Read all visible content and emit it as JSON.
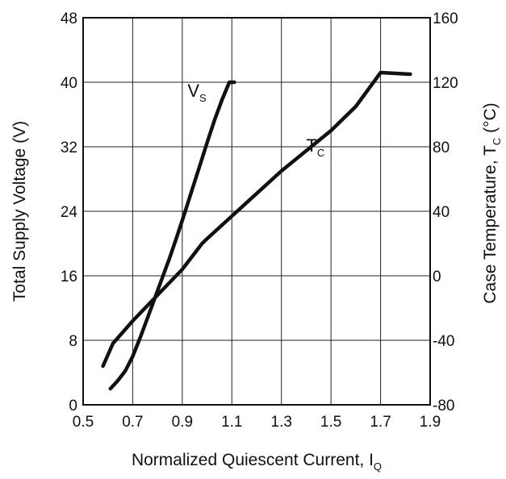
{
  "chart_data": {
    "type": "line",
    "xlabel": {
      "text": "Normalized Quiescent Current, I",
      "sub": "Q"
    },
    "ylabel_left": {
      "text": "Total Supply Voltage (V)"
    },
    "ylabel_right": {
      "text": "Case Temperature, T",
      "sub": "C",
      "suffix": " (°C)"
    },
    "xlim": [
      0.5,
      1.9
    ],
    "ylim_left": [
      0,
      48
    ],
    "ylim_right": [
      -80,
      160
    ],
    "x_ticks": [
      "0.5",
      "0.7",
      "0.9",
      "1.1",
      "1.3",
      "1.5",
      "1.7",
      "1.9"
    ],
    "y_ticks_left": [
      "0",
      "8",
      "16",
      "24",
      "32",
      "40",
      "48"
    ],
    "y_ticks_right": [
      "-80",
      "-40",
      "0",
      "40",
      "80",
      "120",
      "160"
    ],
    "grid": true,
    "series": [
      {
        "name": "V",
        "name_sub": "S",
        "axis": "left",
        "x": [
          0.61,
          0.64,
          0.67,
          0.7,
          0.73,
          0.76,
          0.79,
          0.82,
          0.85,
          0.88,
          0.91,
          0.94,
          0.97,
          1.0,
          1.03,
          1.06,
          1.09,
          1.11
        ],
        "y": [
          2,
          3,
          4.2,
          6,
          8.3,
          10.8,
          13.3,
          15.8,
          18.3,
          21,
          23.8,
          26.7,
          29.6,
          32.5,
          35.3,
          37.8,
          40,
          40
        ]
      },
      {
        "name": "T",
        "name_sub": "C",
        "axis": "right",
        "x": [
          0.58,
          0.62,
          0.7,
          0.8,
          0.9,
          0.98,
          1.0,
          1.1,
          1.3,
          1.5,
          1.6,
          1.7,
          1.82
        ],
        "y": [
          -56,
          -42,
          -28,
          -12,
          4,
          20,
          23,
          37,
          65,
          90,
          105,
          126,
          125
        ]
      }
    ]
  }
}
